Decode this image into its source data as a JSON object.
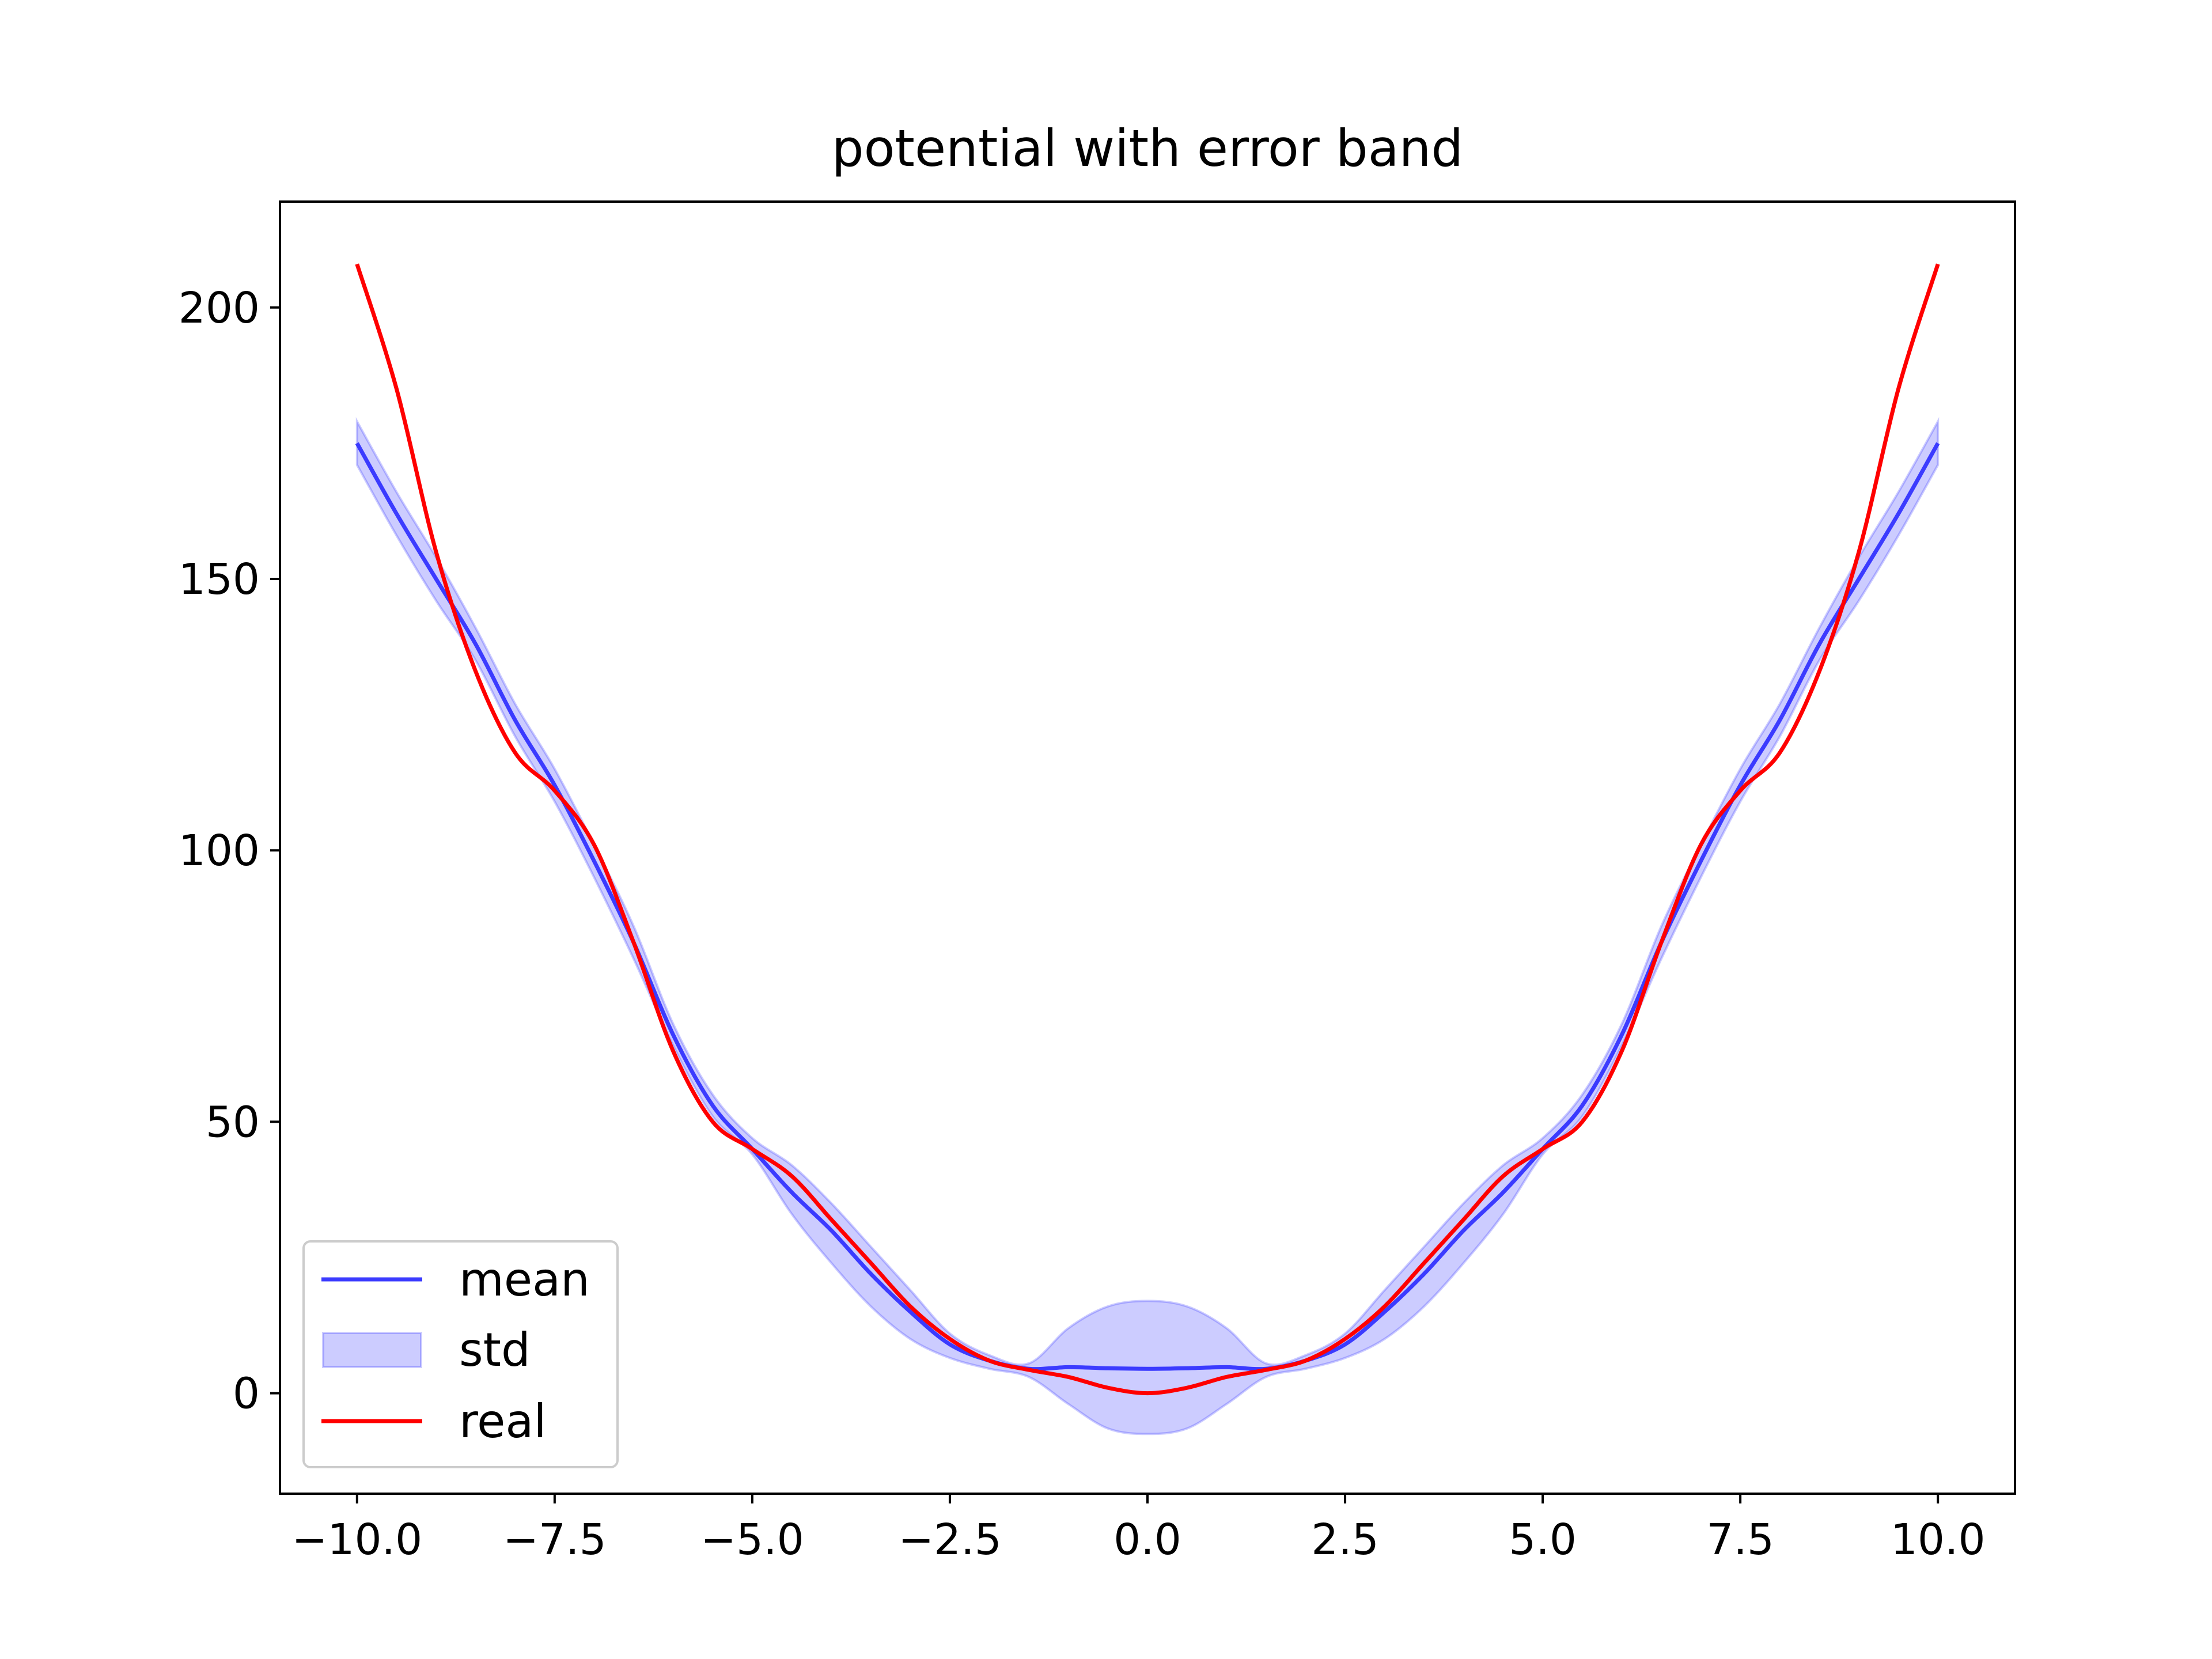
{
  "chart_data": {
    "type": "line",
    "title": "potential with error band",
    "xlabel": "",
    "ylabel": "",
    "xlim": [
      -10.975,
      10.975
    ],
    "ylim": [
      -18.5,
      219.5
    ],
    "grid": false,
    "legend_placement": "lower-left",
    "x_ticks": [
      -10.0,
      -7.5,
      -5.0,
      -2.5,
      0.0,
      2.5,
      5.0,
      7.5,
      10.0
    ],
    "x_tick_labels": [
      "−10.0",
      "−7.5",
      "−5.0",
      "−2.5",
      "0.0",
      "2.5",
      "5.0",
      "7.5",
      "10.0"
    ],
    "y_ticks": [
      0,
      50,
      100,
      150,
      200
    ],
    "y_tick_labels": [
      "0",
      "50",
      "100",
      "150",
      "200"
    ],
    "x": [
      -10.0,
      -9.5,
      -9.0,
      -8.5,
      -8.0,
      -7.5,
      -7.0,
      -6.5,
      -6.0,
      -5.5,
      -5.0,
      -4.5,
      -4.0,
      -3.5,
      -3.0,
      -2.5,
      -2.0,
      -1.5,
      -1.0,
      -0.5,
      0.0,
      0.5,
      1.0,
      1.5,
      2.0,
      2.5,
      3.0,
      3.5,
      4.0,
      4.5,
      5.0,
      5.5,
      6.0,
      6.5,
      7.0,
      7.5,
      8.0,
      8.5,
      9.0,
      9.5,
      10.0
    ],
    "series": [
      {
        "name": "mean",
        "color": "#3b3bff",
        "values": [
          175,
          162,
          150,
          138,
          124,
          112,
          98,
          83,
          66,
          53,
          45,
          37,
          30,
          22,
          15,
          9,
          6,
          4.5,
          4.8,
          4.6,
          4.5,
          4.6,
          4.8,
          4.5,
          6,
          9,
          15,
          22,
          30,
          37,
          45,
          53,
          66,
          83,
          98,
          112,
          124,
          138,
          150,
          162,
          175
        ]
      },
      {
        "name": "std",
        "type": "band",
        "color": "#0000ff",
        "lower": [
          171,
          158,
          146,
          135,
          121,
          109,
          95,
          80,
          64,
          51,
          44,
          33,
          24,
          16,
          10,
          6.5,
          4.5,
          3,
          -2,
          -6.5,
          -7.5,
          -6.5,
          -2,
          3,
          4.5,
          6.5,
          10,
          16,
          24,
          33,
          44,
          51,
          64,
          80,
          95,
          109,
          121,
          135,
          146,
          158,
          171
        ],
        "upper": [
          179,
          166,
          154,
          141,
          127,
          115,
          101,
          86,
          68,
          55,
          47,
          42,
          35,
          27,
          19,
          11,
          7,
          5.5,
          12,
          16,
          17,
          16,
          12,
          5.5,
          7,
          11,
          19,
          27,
          35,
          42,
          47,
          55,
          68,
          86,
          101,
          115,
          127,
          141,
          154,
          166,
          179
        ]
      },
      {
        "name": "real",
        "color": "#ff0000",
        "values": [
          208,
          185,
          155,
          133,
          118,
          111,
          101,
          83,
          63,
          50,
          45,
          40,
          32,
          24,
          16,
          10,
          6,
          4.3,
          3,
          1,
          0,
          1,
          3,
          4.3,
          6,
          10,
          16,
          24,
          32,
          40,
          45,
          50,
          63,
          83,
          101,
          111,
          118,
          133,
          155,
          185,
          208
        ]
      }
    ]
  }
}
